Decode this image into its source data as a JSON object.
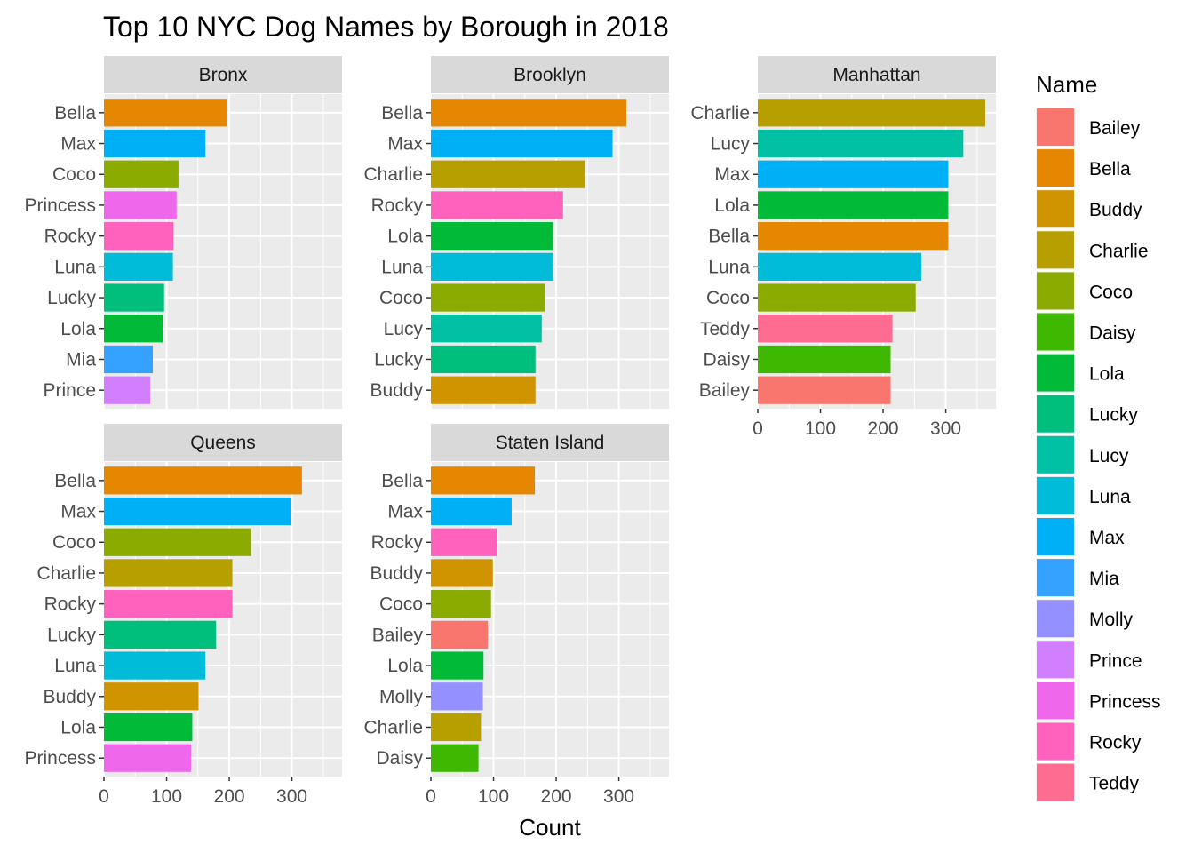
{
  "chart_data": {
    "type": "bar",
    "orientation": "horizontal",
    "title": "Top 10 NYC Dog Names by Borough in 2018",
    "xlabel": "Count",
    "ylabel": "",
    "xlim": [
      0,
      380
    ],
    "xticks": [
      0,
      100,
      200,
      300
    ],
    "grid": true,
    "legend": {
      "title": "Name",
      "position": "right",
      "entries": [
        {
          "name": "Bailey",
          "color": "#F8766D"
        },
        {
          "name": "Bella",
          "color": "#E58700"
        },
        {
          "name": "Buddy",
          "color": "#D09400"
        },
        {
          "name": "Charlie",
          "color": "#B79F00"
        },
        {
          "name": "Coco",
          "color": "#8BAB00"
        },
        {
          "name": "Daisy",
          "color": "#3EB800"
        },
        {
          "name": "Lola",
          "color": "#00BA38"
        },
        {
          "name": "Lucky",
          "color": "#00BF7D"
        },
        {
          "name": "Lucy",
          "color": "#00C1A3"
        },
        {
          "name": "Luna",
          "color": "#00BCD8"
        },
        {
          "name": "Max",
          "color": "#00B0F6"
        },
        {
          "name": "Mia",
          "color": "#35A2FF"
        },
        {
          "name": "Molly",
          "color": "#9590FF"
        },
        {
          "name": "Prince",
          "color": "#D17EFF"
        },
        {
          "name": "Princess",
          "color": "#EF67EB"
        },
        {
          "name": "Rocky",
          "color": "#FF62BC"
        },
        {
          "name": "Teddy",
          "color": "#FF6C91"
        }
      ]
    },
    "panels": [
      {
        "name": "Bronx",
        "categories": [
          "Bella",
          "Max",
          "Coco",
          "Princess",
          "Rocky",
          "Luna",
          "Lucky",
          "Lola",
          "Mia",
          "Prince"
        ],
        "values": [
          197,
          162,
          119,
          116,
          111,
          110,
          96,
          94,
          78,
          74
        ]
      },
      {
        "name": "Brooklyn",
        "categories": [
          "Bella",
          "Max",
          "Charlie",
          "Rocky",
          "Lola",
          "Luna",
          "Coco",
          "Lucy",
          "Lucky",
          "Buddy"
        ],
        "values": [
          312,
          290,
          246,
          211,
          195,
          195,
          182,
          177,
          167,
          167
        ]
      },
      {
        "name": "Manhattan",
        "categories": [
          "Charlie",
          "Lucy",
          "Max",
          "Lola",
          "Bella",
          "Luna",
          "Coco",
          "Teddy",
          "Daisy",
          "Bailey"
        ],
        "values": [
          363,
          328,
          304,
          304,
          304,
          261,
          252,
          215,
          212,
          212
        ]
      },
      {
        "name": "Queens",
        "categories": [
          "Bella",
          "Max",
          "Coco",
          "Charlie",
          "Rocky",
          "Lucky",
          "Luna",
          "Buddy",
          "Lola",
          "Princess"
        ],
        "values": [
          316,
          299,
          235,
          205,
          205,
          179,
          162,
          151,
          141,
          139
        ]
      },
      {
        "name": "Staten Island",
        "categories": [
          "Bella",
          "Max",
          "Rocky",
          "Buddy",
          "Coco",
          "Bailey",
          "Lola",
          "Molly",
          "Charlie",
          "Daisy"
        ],
        "values": [
          166,
          129,
          105,
          99,
          96,
          91,
          84,
          83,
          80,
          76
        ]
      }
    ]
  }
}
